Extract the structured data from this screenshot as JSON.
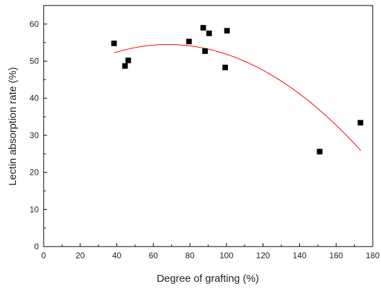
{
  "chart_data": {
    "type": "scatter",
    "xlabel": "Degree of grafting (%)",
    "ylabel": "Lectin absorption rate (%)",
    "xlim": [
      0,
      180
    ],
    "ylim": [
      0,
      65
    ],
    "x_ticks": [
      0,
      20,
      40,
      60,
      80,
      100,
      120,
      140,
      160,
      180
    ],
    "y_ticks": [
      0,
      10,
      20,
      30,
      40,
      50,
      60
    ],
    "grid": false,
    "legend": "none",
    "marker_color": "#000000",
    "fit_color": "#ff0000",
    "series": [
      {
        "type": "scatter",
        "points": [
          {
            "x": 38.5,
            "y": 54.8
          },
          {
            "x": 44.5,
            "y": 48.7
          },
          {
            "x": 46.3,
            "y": 50.2
          },
          {
            "x": 79.5,
            "y": 55.3
          },
          {
            "x": 87.3,
            "y": 59.0
          },
          {
            "x": 88.3,
            "y": 52.7
          },
          {
            "x": 90.5,
            "y": 57.5
          },
          {
            "x": 99.3,
            "y": 48.3
          },
          {
            "x": 100.3,
            "y": 58.2
          },
          {
            "x": 151.0,
            "y": 25.6
          },
          {
            "x": 173.3,
            "y": 33.4
          }
        ]
      },
      {
        "type": "line",
        "x_range": [
          38.5,
          173.5
        ],
        "points": [
          {
            "x": 38.5,
            "y": 51.7
          },
          {
            "x": 60,
            "y": 54.6
          },
          {
            "x": 75,
            "y": 55.0
          },
          {
            "x": 100,
            "y": 52.2
          },
          {
            "x": 130,
            "y": 43.9
          },
          {
            "x": 150,
            "y": 36.6
          },
          {
            "x": 173.5,
            "y": 26.5
          }
        ]
      }
    ]
  }
}
